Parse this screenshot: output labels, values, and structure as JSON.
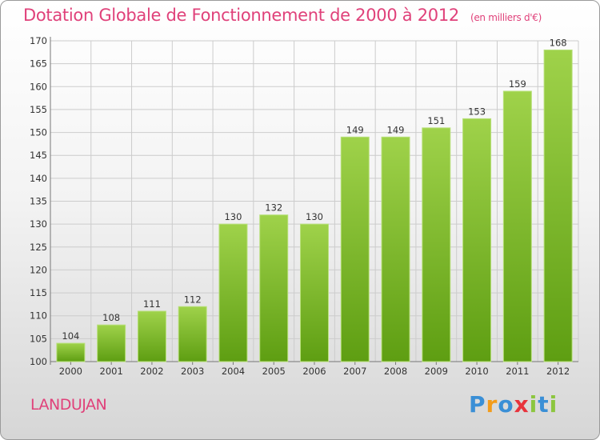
{
  "title": "Dotation Globale de Fonctionnement de 2000 à 2012",
  "subtitle": "(en milliers d'€)",
  "commune": "LANDUJAN",
  "logo": {
    "text": "Proxiti",
    "letters": [
      {
        "ch": "P",
        "color": "#3a8fd6"
      },
      {
        "ch": "r",
        "color": "#f39c1a"
      },
      {
        "ch": "o",
        "color": "#3a8fd6"
      },
      {
        "ch": "x",
        "color": "#e8333c"
      },
      {
        "ch": "i",
        "color": "#8cc63f"
      },
      {
        "ch": "t",
        "color": "#3a8fd6"
      },
      {
        "ch": "i",
        "color": "#8cc63f"
      }
    ]
  },
  "colors": {
    "accent": "#e0417a",
    "bar_top": "#9fd24a",
    "bar_bottom": "#5e9e12",
    "grid": "#cccccc"
  },
  "chart_data": {
    "type": "bar",
    "categories": [
      "2000",
      "2001",
      "2002",
      "2003",
      "2004",
      "2005",
      "2006",
      "2007",
      "2008",
      "2009",
      "2010",
      "2011",
      "2012"
    ],
    "values": [
      104,
      108,
      111,
      112,
      130,
      132,
      130,
      149,
      149,
      151,
      153,
      159,
      168
    ],
    "ylim": [
      100,
      170
    ],
    "yticks": [
      100,
      105,
      110,
      115,
      120,
      125,
      130,
      135,
      140,
      145,
      150,
      155,
      160,
      165,
      170
    ],
    "grid": true,
    "data_labels": true,
    "xlabel": "",
    "ylabel": ""
  }
}
